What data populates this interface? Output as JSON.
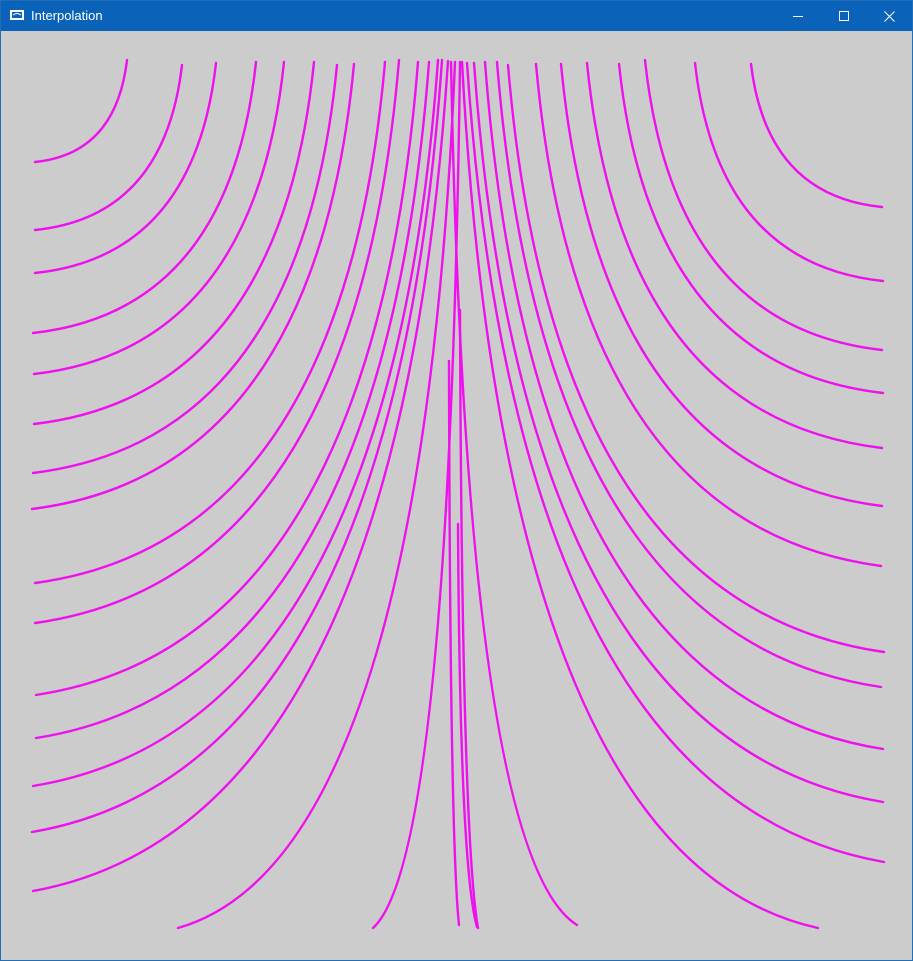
{
  "window": {
    "title": "Interpolation",
    "titlebar_color": "#0a63b8",
    "background_color": "#cccccc"
  },
  "controls": {
    "minimize_icon": "minimize-icon",
    "maximize_icon": "maximize-icon",
    "close_icon": "close-icon"
  },
  "plot": {
    "curve_color": "#ee11ee",
    "curve_count": 34
  }
}
